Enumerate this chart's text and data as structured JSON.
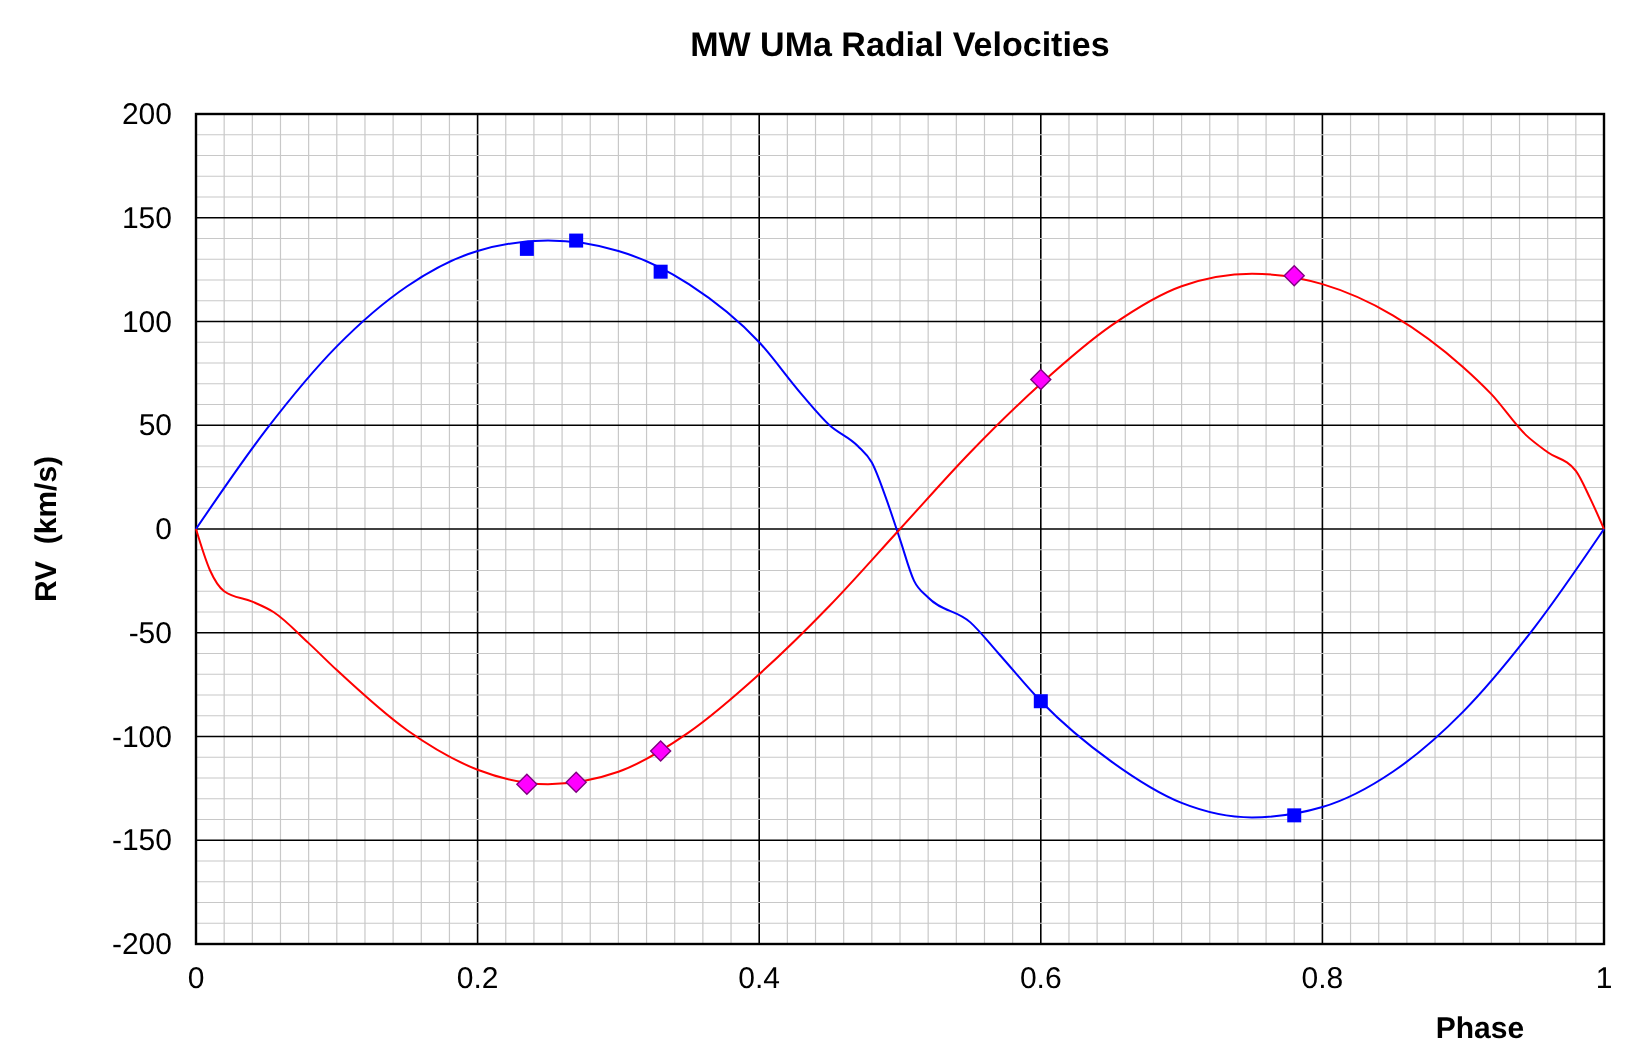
{
  "chart_data": {
    "type": "line",
    "title": "MW UMa Radial Velocities",
    "xlabel": "Phase",
    "ylabel": "RV  (km/s)",
    "xlim": [
      0,
      1
    ],
    "ylim": [
      -200,
      200
    ],
    "xticks": [
      0,
      {
        "value": 0.02,
        "label": null
      },
      {
        "value": 0.04,
        "label": null
      },
      {
        "value": 0.06,
        "label": null
      },
      {
        "value": 0.08,
        "label": null
      },
      {
        "value": 0.1,
        "label": null
      },
      {
        "value": 0.12,
        "label": null
      },
      {
        "value": 0.14,
        "label": null
      },
      {
        "value": 0.16,
        "label": null
      },
      {
        "value": 0.18,
        "label": null
      },
      0.2,
      {
        "value": 0.22,
        "label": null
      },
      {
        "value": 0.24,
        "label": null
      },
      {
        "value": 0.26,
        "label": null
      },
      {
        "value": 0.28,
        "label": null
      },
      {
        "value": 0.3,
        "label": null
      },
      {
        "value": 0.32,
        "label": null
      },
      {
        "value": 0.34,
        "label": null
      },
      {
        "value": 0.36,
        "label": null
      },
      {
        "value": 0.38,
        "label": null
      },
      0.4,
      {
        "value": 0.42,
        "label": null
      },
      {
        "value": 0.44,
        "label": null
      },
      {
        "value": 0.46,
        "label": null
      },
      {
        "value": 0.48,
        "label": null
      },
      {
        "value": 0.5,
        "label": null
      },
      {
        "value": 0.52,
        "label": null
      },
      {
        "value": 0.54,
        "label": null
      },
      {
        "value": 0.56,
        "label": null
      },
      {
        "value": 0.58,
        "label": null
      },
      0.6,
      {
        "value": 0.62,
        "label": null
      },
      {
        "value": 0.64,
        "label": null
      },
      {
        "value": 0.66,
        "label": null
      },
      {
        "value": 0.68,
        "label": null
      },
      {
        "value": 0.7,
        "label": null
      },
      {
        "value": 0.72,
        "label": null
      },
      {
        "value": 0.74,
        "label": null
      },
      {
        "value": 0.76,
        "label": null
      },
      {
        "value": 0.78,
        "label": null
      },
      0.8,
      {
        "value": 0.82,
        "label": null
      },
      {
        "value": 0.84,
        "label": null
      },
      {
        "value": 0.86,
        "label": null
      },
      {
        "value": 0.88,
        "label": null
      },
      {
        "value": 0.9,
        "label": null
      },
      {
        "value": 0.92,
        "label": null
      },
      {
        "value": 0.94,
        "label": null
      },
      {
        "value": 0.96,
        "label": null
      },
      {
        "value": 0.98,
        "label": null
      },
      1
    ],
    "yticks": [
      -200,
      {
        "value": -190,
        "label": null
      },
      {
        "value": -180,
        "label": null
      },
      {
        "value": -170,
        "label": null
      },
      {
        "value": -160,
        "label": null
      },
      -150,
      {
        "value": -140,
        "label": null
      },
      {
        "value": -130,
        "label": null
      },
      {
        "value": -120,
        "label": null
      },
      {
        "value": -110,
        "label": null
      },
      -100,
      {
        "value": -90,
        "label": null
      },
      {
        "value": -80,
        "label": null
      },
      {
        "value": -70,
        "label": null
      },
      {
        "value": -60,
        "label": null
      },
      -50,
      {
        "value": -40,
        "label": null
      },
      {
        "value": -30,
        "label": null
      },
      {
        "value": -20,
        "label": null
      },
      {
        "value": -10,
        "label": null
      },
      0,
      {
        "value": 10,
        "label": null
      },
      {
        "value": 20,
        "label": null
      },
      {
        "value": 30,
        "label": null
      },
      {
        "value": 40,
        "label": null
      },
      50,
      {
        "value": 60,
        "label": null
      },
      {
        "value": 70,
        "label": null
      },
      {
        "value": 80,
        "label": null
      },
      {
        "value": 90,
        "label": null
      },
      100,
      {
        "value": 110,
        "label": null
      },
      {
        "value": 120,
        "label": null
      },
      {
        "value": 130,
        "label": null
      },
      {
        "value": 140,
        "label": null
      },
      150,
      {
        "value": 160,
        "label": null
      },
      {
        "value": 170,
        "label": null
      },
      {
        "value": 180,
        "label": null
      },
      {
        "value": 190,
        "label": null
      },
      200
    ],
    "grid": true,
    "series": [
      {
        "type": "line",
        "color": "#0000ff",
        "marker": "none",
        "x": [
          0,
          0.05,
          0.1,
          0.15,
          0.2,
          0.25,
          0.3,
          0.35,
          0.4,
          0.43,
          0.45,
          0.47,
          0.48,
          0.49,
          0.5,
          0.51,
          0.52,
          0.55,
          0.57,
          0.6,
          0.65,
          0.7,
          0.75,
          0.8,
          0.85,
          0.9,
          0.95,
          1
        ],
        "values": [
          0,
          48,
          88,
          117,
          134,
          139,
          134,
          118,
          90,
          65,
          50,
          40,
          32,
          15,
          -5,
          -25,
          -33,
          -45,
          -60,
          -83,
          -112,
          -132,
          -139,
          -134,
          -117,
          -88,
          -48,
          0
        ]
      },
      {
        "type": "line",
        "color": "#ff0000",
        "marker": "none",
        "x": [
          0,
          0.01,
          0.02,
          0.04,
          0.055,
          0.08,
          0.1,
          0.15,
          0.2,
          0.25,
          0.3,
          0.35,
          0.4,
          0.45,
          0.5,
          0.55,
          0.6,
          0.65,
          0.7,
          0.75,
          0.8,
          0.85,
          0.9,
          0.92,
          0.945,
          0.96,
          0.98,
          0.99,
          1
        ],
        "values": [
          0,
          -20,
          -30,
          -35,
          -40,
          -55,
          -68,
          -97,
          -116,
          -123,
          -117,
          -98,
          -70,
          -37,
          0,
          37,
          70,
          98,
          117,
          123,
          118,
          103,
          78,
          65,
          45,
          37,
          28,
          15,
          0
        ]
      },
      {
        "type": "scatter",
        "color": "#0000ff",
        "marker": "square",
        "x": [
          0.235,
          0.27,
          0.33,
          0.6,
          0.78
        ],
        "values": [
          135,
          139,
          124,
          -83,
          -138
        ]
      },
      {
        "type": "scatter",
        "color": "#ff00ff",
        "marker": "diamond",
        "x": [
          0.235,
          0.27,
          0.33,
          0.6,
          0.78
        ],
        "values": [
          -123,
          -122,
          -107,
          72,
          122
        ]
      }
    ]
  }
}
